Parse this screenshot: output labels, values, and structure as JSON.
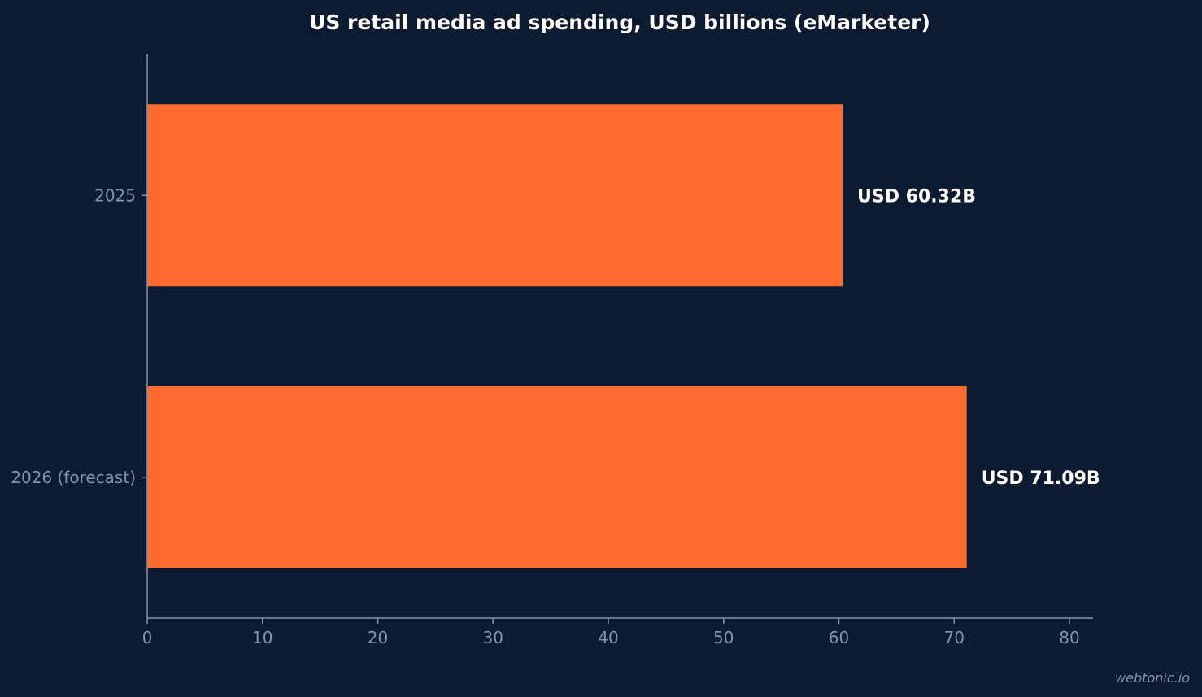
{
  "chart_data": {
    "type": "bar",
    "orientation": "horizontal",
    "title": "US retail media ad spending, USD billions (eMarketer)",
    "xlabel": "",
    "ylabel": "",
    "categories": [
      "2025",
      "2026 (forecast)"
    ],
    "values": [
      60.32,
      71.09
    ],
    "value_labels": [
      "USD 60.32B",
      "USD 71.09B"
    ],
    "xlim": [
      0,
      80
    ],
    "xticks": [
      0,
      10,
      20,
      30,
      40,
      50,
      60,
      70,
      80
    ],
    "grid": false,
    "legend": "none",
    "colors": {
      "background": "#0c1b32",
      "bar": "#ff6b2f",
      "axis": "#8593a8",
      "text": "#ffffff"
    }
  },
  "watermark": "webtonic.io"
}
